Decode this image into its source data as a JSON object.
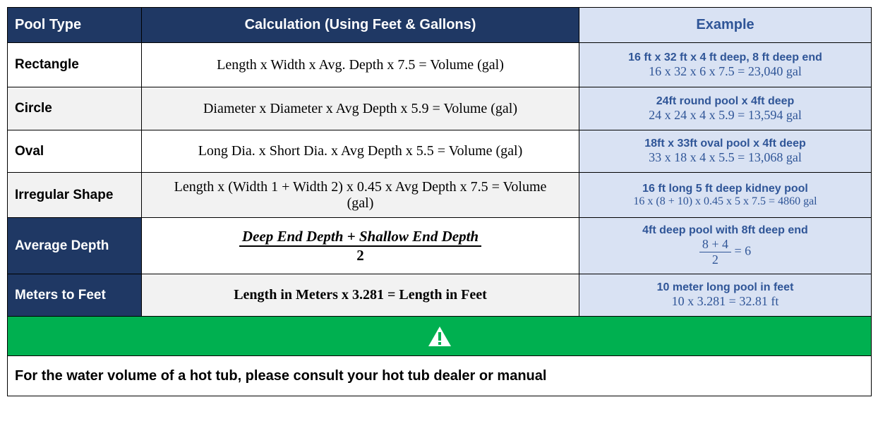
{
  "header": [
    "Pool Type",
    "Calculation (Using Feet & Gallons)",
    "Example"
  ],
  "rows": [
    {
      "type": "Rectangle",
      "calc": "Length x Width x Avg. Depth x 7.5 = Volume (gal)",
      "example_title": "16 ft x 32 ft x 4 ft deep, 8 ft deep end",
      "example_calc": "16 x 32 x 6 x 7.5 = 23,040 gal"
    },
    {
      "type": "Circle",
      "calc": "Diameter x Diameter x Avg Depth x 5.9 = Volume (gal)",
      "example_title": "24ft round pool x 4ft deep",
      "example_calc": "24 x 24 x 4 x 5.9 = 13,594 gal"
    },
    {
      "type": "Oval",
      "calc": "Long Dia. x Short Dia. x Avg Depth x 5.5 = Volume (gal)",
      "example_title": "18ft x 33ft oval pool x 4ft deep",
      "example_calc": "33 x 18 x 4 x 5.5 = 13,068 gal"
    },
    {
      "type": "Irregular Shape",
      "calc": "Length x (Width 1 + Width 2) x 0.45 x Avg Depth x 7.5 = Volume (gal)",
      "example_title": "16 ft long 5 ft deep kidney pool",
      "example_calc": "16 x (8 + 10) x 0.45 x 5 x 7.5 = 4860 gal"
    },
    {
      "type": "Average Depth",
      "calc_numerator": "Deep End Depth + Shallow End Depth",
      "calc_denominator": "2",
      "example_title": "4ft deep pool with 8ft deep end",
      "example_numerator": "8 + 4",
      "example_denominator": "2",
      "example_result": "= 6"
    },
    {
      "type": "Meters to Feet",
      "calc": "Length in Meters x 3.281 = Length in Feet",
      "example_title": "10 meter long pool in feet",
      "example_calc": "10 x 3.281 = 32.81 ft"
    }
  ],
  "notice": "For the water volume of a hot tub, please consult your hot tub dealer or manual"
}
